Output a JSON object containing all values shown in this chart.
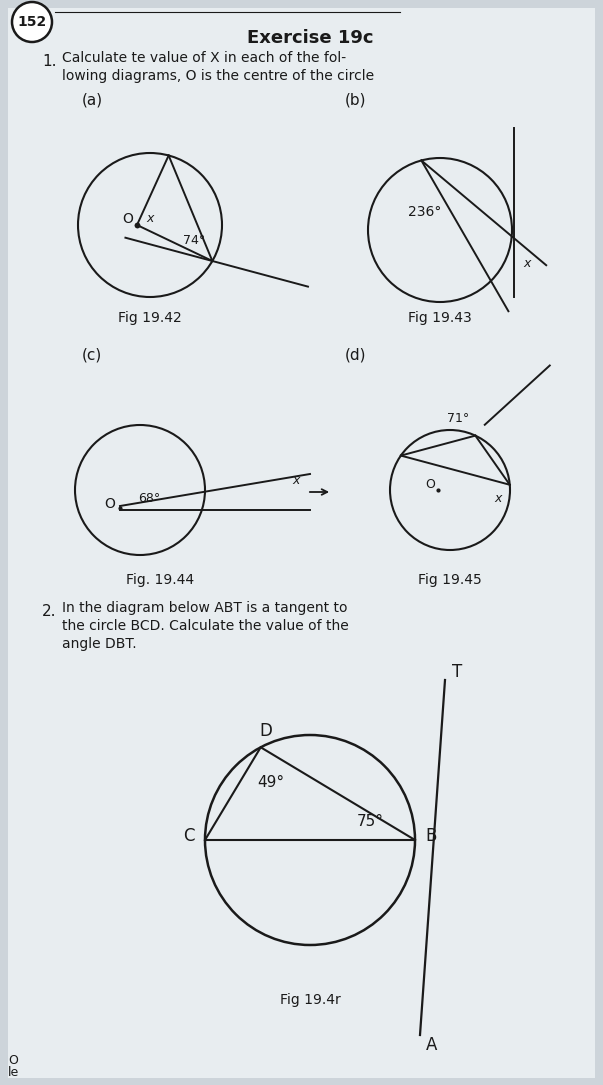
{
  "page_num": "152",
  "title": "Exercise 19c",
  "q1_num": "1.",
  "q2_num": "2.",
  "fig_a_label": "(a)",
  "fig_b_label": "(b)",
  "fig_c_label": "(c)",
  "fig_d_label": "(d)",
  "fig_42_caption": "Fig 19.42",
  "fig_43_caption": "Fig 19.43",
  "fig_44_caption": "Fig. 19.44",
  "fig_45_caption": "Fig 19.45",
  "fig_46_caption": "Fig 19.4r",
  "angle_a": "74°",
  "angle_b": "236°",
  "angle_c": "68°",
  "angle_d": "71°",
  "angle_49": "49°",
  "angle_75": "75°",
  "bg_color": "#cdd4da",
  "page_bg": "#dce4ea",
  "text_color": "#1a1a1a",
  "line_color": "#1a1a1a"
}
